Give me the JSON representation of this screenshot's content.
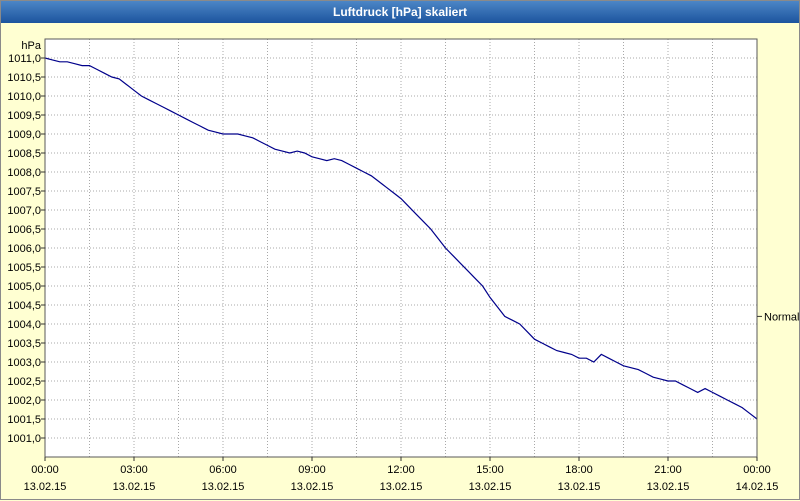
{
  "window": {
    "title": "Luftdruck [hPa] skaliert"
  },
  "colors": {
    "titlebar_top": "#4c86c6",
    "titlebar_bottom": "#1c549e",
    "title_text": "#ffffff",
    "background": "#ffffd2",
    "plot_background": "#ffffff",
    "grid": "#a8a8a8",
    "plot_border": "#5a5a5a",
    "line": "#00008b",
    "tick_text": "#000000"
  },
  "chart_data": {
    "type": "line",
    "title": "Luftdruck [hPa] skaliert",
    "ylabel": "hPa",
    "xlabel": "",
    "grid": true,
    "legend_position": "none",
    "ylim": [
      1000.5,
      1011.5
    ],
    "x_range_hours": [
      0,
      24
    ],
    "x_start": 0,
    "x_step_hours": 0.25,
    "minor_x_step_hours": 1.5,
    "minor_y_step": 0.5,
    "y_tick_values": [
      1001.0,
      1001.5,
      1002.0,
      1002.5,
      1003.0,
      1003.5,
      1004.0,
      1004.5,
      1005.0,
      1005.5,
      1006.0,
      1006.5,
      1007.0,
      1007.5,
      1008.0,
      1008.5,
      1009.0,
      1009.5,
      1010.0,
      1010.5,
      1011.0
    ],
    "y_tick_labels": [
      "1001,0",
      "1001,5",
      "1002,0",
      "1002,5",
      "1003,0",
      "1003,5",
      "1004,0",
      "1004,5",
      "1005,0",
      "1005,5",
      "1006,0",
      "1006,5",
      "1007,0",
      "1007,5",
      "1008,0",
      "1008,5",
      "1009,0",
      "1009,5",
      "1010,0",
      "1010,5",
      "1011,0"
    ],
    "x_tick_hours": [
      0,
      3,
      6,
      9,
      12,
      15,
      18,
      21,
      24
    ],
    "x_time_labels": [
      "00:00",
      "03:00",
      "06:00",
      "09:00",
      "12:00",
      "15:00",
      "18:00",
      "21:00",
      "00:00"
    ],
    "x_date_labels": [
      "13.02.15",
      "13.02.15",
      "13.02.15",
      "13.02.15",
      "13.02.15",
      "13.02.15",
      "13.02.15",
      "13.02.15",
      "14.02.15"
    ],
    "annotation": {
      "label": "Normal",
      "value": 1004.2
    },
    "series": [
      {
        "name": "Luftdruck",
        "color": "#00008b",
        "values": [
          1011.0,
          1010.95,
          1010.9,
          1010.9,
          1010.85,
          1010.8,
          1010.8,
          1010.7,
          1010.6,
          1010.5,
          1010.45,
          1010.3,
          1010.15,
          1010.0,
          1009.9,
          1009.8,
          1009.7,
          1009.6,
          1009.5,
          1009.4,
          1009.3,
          1009.2,
          1009.1,
          1009.05,
          1009.0,
          1009.0,
          1009.0,
          1008.95,
          1008.9,
          1008.8,
          1008.7,
          1008.6,
          1008.55,
          1008.5,
          1008.55,
          1008.5,
          1008.4,
          1008.35,
          1008.3,
          1008.35,
          1008.3,
          1008.2,
          1008.1,
          1008.0,
          1007.9,
          1007.75,
          1007.6,
          1007.45,
          1007.3,
          1007.1,
          1006.9,
          1006.7,
          1006.5,
          1006.25,
          1006.0,
          1005.8,
          1005.6,
          1005.4,
          1005.2,
          1005.0,
          1004.7,
          1004.45,
          1004.2,
          1004.1,
          1004.0,
          1003.8,
          1003.6,
          1003.5,
          1003.4,
          1003.3,
          1003.25,
          1003.2,
          1003.1,
          1003.1,
          1003.0,
          1003.2,
          1003.1,
          1003.0,
          1002.9,
          1002.85,
          1002.8,
          1002.7,
          1002.6,
          1002.55,
          1002.5,
          1002.5,
          1002.4,
          1002.3,
          1002.2,
          1002.3,
          1002.2,
          1002.1,
          1002.0,
          1001.9,
          1001.8,
          1001.65,
          1001.5
        ]
      }
    ]
  }
}
